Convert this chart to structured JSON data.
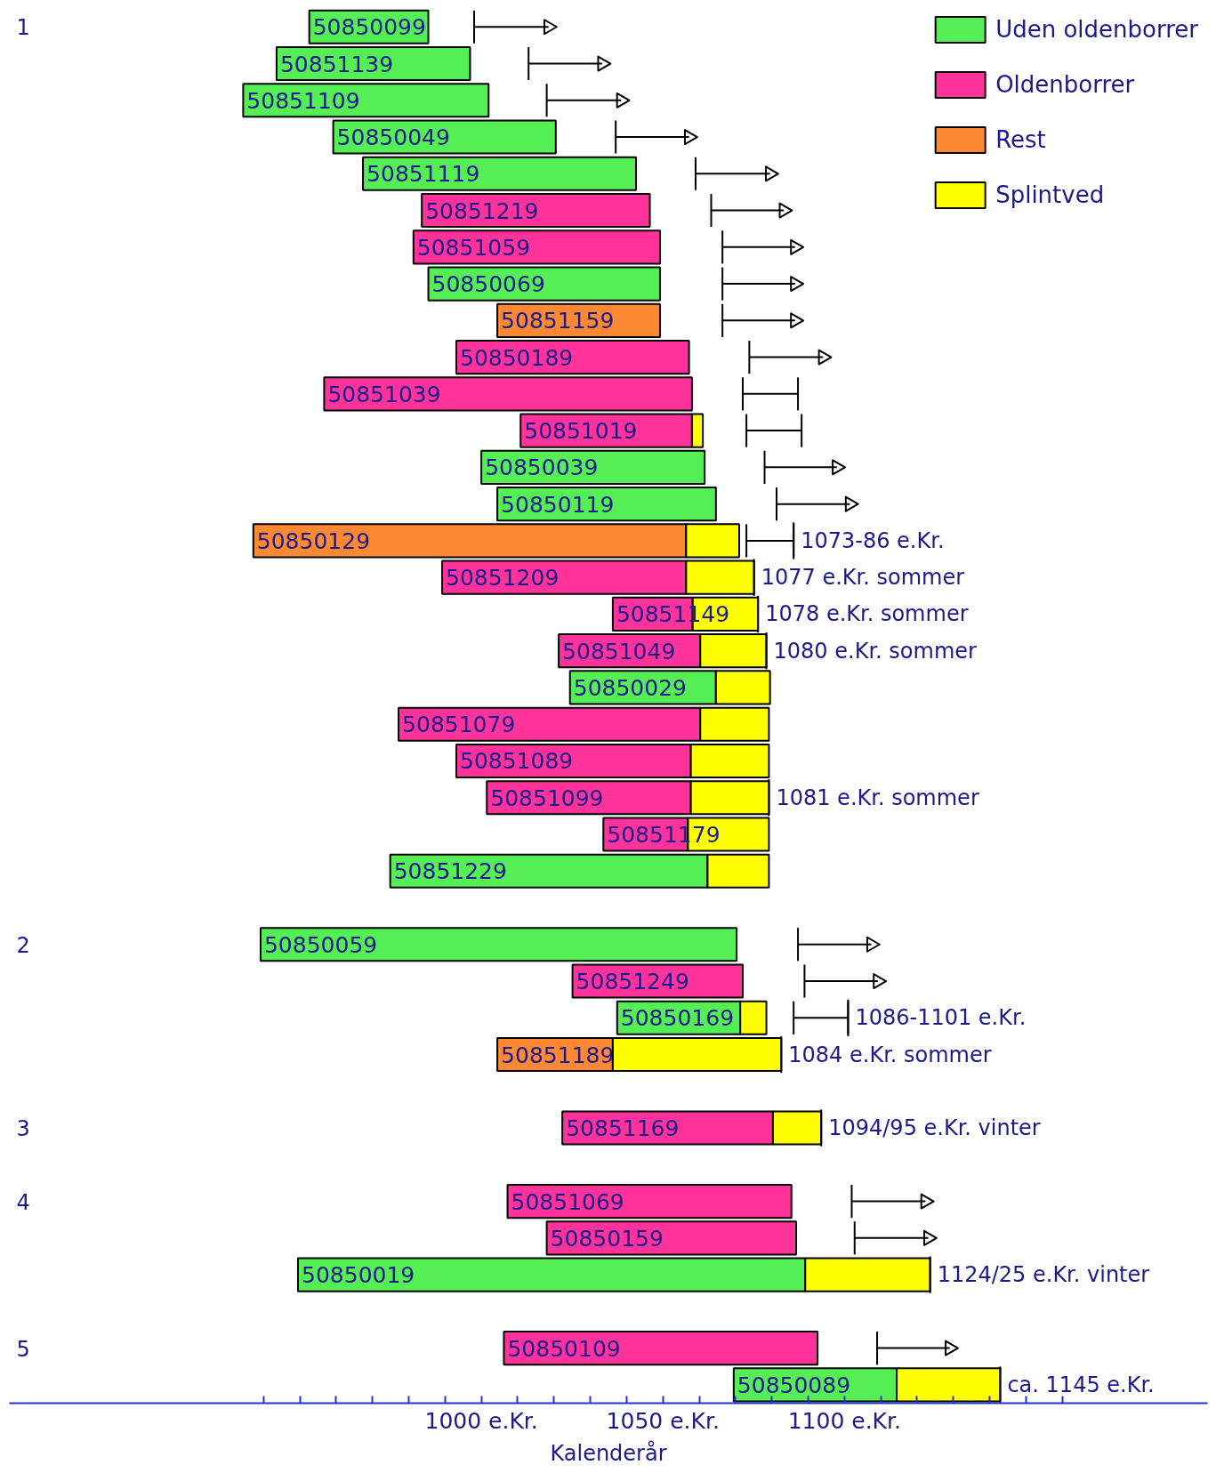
{
  "chart_data": {
    "type": "bar",
    "orientation": "horizontal",
    "xlabel": "Kalenderår",
    "legend": "top right",
    "grid": false,
    "tick_labels": "x",
    "xlim": [
      870,
      1200
    ],
    "xticks": [
      {
        "value": 940,
        "label": null
      },
      {
        "value": 950,
        "label": null
      },
      {
        "value": 960,
        "label": null
      },
      {
        "value": 970,
        "label": null
      },
      {
        "value": 980,
        "label": null
      },
      {
        "value": 990,
        "label": null
      },
      {
        "value": 1000,
        "label": "1000 e.Kr."
      },
      {
        "value": 1010,
        "label": null
      },
      {
        "value": 1020,
        "label": null
      },
      {
        "value": 1030,
        "label": null
      },
      {
        "value": 1040,
        "label": null
      },
      {
        "value": 1050,
        "label": "1050 e.Kr."
      },
      {
        "value": 1060,
        "label": null
      },
      {
        "value": 1070,
        "label": null
      },
      {
        "value": 1080,
        "label": null
      },
      {
        "value": 1090,
        "label": null
      },
      {
        "value": 1100,
        "label": "1100 e.Kr."
      },
      {
        "value": 1110,
        "label": null
      },
      {
        "value": 1120,
        "label": null
      },
      {
        "value": 1130,
        "label": null
      },
      {
        "value": 1140,
        "label": null
      },
      {
        "value": 1150,
        "label": null
      },
      {
        "value": 1160,
        "label": null
      }
    ],
    "categories": [
      "50850099",
      "50851139",
      "50851109",
      "50850049",
      "50851119",
      "50851219",
      "50851059",
      "50850069",
      "50851159",
      "50850189",
      "50851039",
      "50851019",
      "50850039",
      "50850119",
      "50850129",
      "50851209",
      "50851149",
      "50851049",
      "50850029",
      "50851079",
      "50851089",
      "50851099",
      "50851179",
      "50851229",
      null,
      "50850059",
      "50851249",
      "50850169",
      "50851189",
      null,
      "50851169",
      null,
      "50851069",
      "50850159",
      "50850019",
      null,
      "50850109",
      "50850089"
    ],
    "series": [
      {
        "name": "Uden oldenborrer",
        "color": "#55ee55",
        "errors": [
          [
            998,
            1018.5
          ],
          [
            1013,
            1033.3
          ],
          [
            1018,
            1038.5
          ],
          [
            1037,
            1057.2
          ],
          [
            1059,
            1079.5
          ],
          null,
          null,
          [
            1066.4,
            1086.4
          ],
          null,
          null,
          null,
          null,
          [
            1078,
            1097.9
          ],
          [
            1081.3,
            1101.5
          ],
          null,
          null,
          null,
          null,
          null,
          null,
          null,
          null,
          null,
          null,
          null,
          [
            1087.2,
            1107.4
          ],
          null,
          [
            1086,
            1101
          ],
          null,
          null,
          null,
          null,
          null,
          null,
          null,
          null,
          null,
          null
        ],
        "base": [
          952.6,
          943.6,
          934.4,
          959.2,
          967.4,
          null,
          null,
          985.4,
          null,
          null,
          null,
          null,
          1000,
          1004.4,
          null,
          null,
          null,
          null,
          1024.4,
          null,
          null,
          null,
          null,
          974.9,
          null,
          939.2,
          null,
          1037.4,
          null,
          null,
          null,
          null,
          null,
          null,
          949.5,
          null,
          null,
          1069.5
        ],
        "values": [
          32.8,
          53.3,
          67.6,
          61.3,
          75.2,
          null,
          null,
          63.8,
          null,
          null,
          null,
          null,
          61.5,
          60.2,
          null,
          null,
          null,
          null,
          40.2,
          null,
          null,
          null,
          null,
          87.4,
          null,
          131.1,
          null,
          33.9,
          null,
          null,
          null,
          null,
          null,
          null,
          139.7,
          null,
          null,
          44.9
        ]
      },
      {
        "name": "Oldenborrer",
        "color": "#ff3399",
        "errors": [
          null,
          null,
          null,
          null,
          null,
          [
            1063.3,
            1083.3
          ],
          [
            1066.4,
            1086.4
          ],
          null,
          null,
          [
            1073.8,
            1094.1
          ],
          [
            1072,
            1087.2
          ],
          [
            1073,
            1088.2
          ],
          null,
          null,
          null,
          null,
          null,
          null,
          null,
          null,
          null,
          null,
          null,
          null,
          null,
          null,
          [
            1089,
            1109.2
          ],
          null,
          null,
          null,
          null,
          null,
          [
            1102,
            1122.3
          ],
          [
            1102.8,
            1123.1
          ],
          null,
          null,
          [
            1109,
            1129
          ],
          null
        ],
        "base": [
          null,
          null,
          null,
          null,
          null,
          983.6,
          981.3,
          null,
          null,
          993.1,
          956.7,
          1010.8,
          null,
          null,
          null,
          989.2,
          1036.2,
          1021.3,
          null,
          977.2,
          993.1,
          1001.5,
          1033.6,
          null,
          null,
          null,
          1025.1,
          null,
          null,
          null,
          1022.3,
          null,
          1007.2,
          1018,
          null,
          null,
          1006.2,
          null
        ],
        "values": [
          null,
          null,
          null,
          null,
          null,
          62.8,
          67.9,
          null,
          null,
          64.1,
          101.3,
          47.2,
          null,
          null,
          null,
          67.2,
          22,
          39,
          null,
          83.1,
          64.6,
          56.2,
          23.3,
          null,
          null,
          null,
          46.9,
          null,
          null,
          null,
          58,
          null,
          78.2,
          68.7,
          null,
          null,
          86.4,
          null
        ]
      },
      {
        "name": "Rest",
        "color": "#ff8833",
        "errors": [
          null,
          null,
          null,
          null,
          null,
          null,
          null,
          null,
          [
            1066.4,
            1086.4
          ],
          null,
          null,
          null,
          null,
          null,
          [
            1073,
            1086
          ],
          null,
          null,
          null,
          null,
          null,
          null,
          null,
          null,
          null,
          null,
          null,
          null,
          null,
          null,
          null,
          null,
          null,
          null,
          null,
          null,
          null,
          null,
          null
        ],
        "base": [
          null,
          null,
          null,
          null,
          null,
          null,
          null,
          null,
          1004.4,
          null,
          null,
          null,
          null,
          null,
          937.2,
          null,
          null,
          null,
          null,
          null,
          null,
          null,
          null,
          null,
          null,
          null,
          null,
          null,
          1004.4,
          null,
          null,
          null,
          null,
          null,
          null,
          null,
          null,
          null
        ],
        "values": [
          null,
          null,
          null,
          null,
          null,
          null,
          null,
          null,
          44.8,
          null,
          null,
          null,
          null,
          null,
          119.2,
          null,
          null,
          null,
          null,
          null,
          null,
          null,
          null,
          null,
          null,
          null,
          null,
          null,
          31.8,
          null,
          null,
          null,
          null,
          null,
          null,
          null,
          null,
          null
        ]
      },
      {
        "type": "scatter",
        "marker": "triangle",
        "color": "#000000",
        "values": [
          1018.5,
          1033.3,
          1038.5,
          1057.2,
          1079.5,
          1083.3,
          1086.4,
          1086.4,
          1086.4,
          1094.1,
          null,
          null,
          1097.9,
          1101.5,
          null,
          null,
          null,
          null,
          null,
          null,
          null,
          null,
          null,
          null,
          null,
          1107.4,
          1109.2,
          null,
          null,
          null,
          null,
          null,
          1122.3,
          1123.1,
          null,
          null,
          1129,
          null
        ]
      },
      {
        "name": "Splintved",
        "color": "#ffff00",
        "base": [
          null,
          null,
          null,
          null,
          null,
          null,
          null,
          null,
          null,
          null,
          null,
          1058,
          null,
          null,
          1056.4,
          1056.4,
          1058.2,
          1060.3,
          1064.6,
          1060.3,
          1057.7,
          1057.7,
          1056.9,
          1062.3,
          null,
          null,
          null,
          1071.3,
          1036.2,
          null,
          1080.3,
          null,
          null,
          null,
          1089.2,
          null,
          null,
          1114.4
        ],
        "values": [
          null,
          null,
          null,
          null,
          null,
          null,
          null,
          null,
          null,
          null,
          null,
          3,
          null,
          null,
          14.6,
          18.7,
          18,
          18.2,
          14.9,
          18.9,
          21.5,
          21.5,
          22.3,
          16.9,
          null,
          null,
          null,
          7.2,
          46.4,
          null,
          13.3,
          null,
          null,
          null,
          34.4,
          null,
          null,
          28.5
        ]
      }
    ],
    "annotations": [
      "1",
      "2",
      "3",
      "4",
      "5",
      {
        "text": "1073-86 e.Kr.",
        "x": 1086,
        "y": "50850129"
      },
      {
        "text": "1077 e.Kr. sommer",
        "x": 1075.1,
        "y": "50851209"
      },
      {
        "text": "1078 e.Kr. sommer",
        "x": 1076.2,
        "y": "50851149"
      },
      {
        "text": "1080 e.Kr. sommer",
        "x": 1078.5,
        "y": "50851049"
      },
      {
        "text": "1081 e.Kr. sommer",
        "x": 1079.2,
        "y": "50851099"
      },
      {
        "text": "1086-1101 e.Kr.",
        "x": 1101,
        "y": "50850169"
      },
      {
        "text": "1084 e.Kr. sommer",
        "x": 1082.6,
        "y": "50851189"
      },
      {
        "text": "1094/95 e.Kr. vinter",
        "x": 1093.6,
        "y": "50851169"
      },
      {
        "text": "1124/25 e.Kr. vinter",
        "x": 1123.6,
        "y": "50850019"
      },
      {
        "text": "ca. 1145 e.Kr.",
        "x": 1142.9,
        "y": "50850089"
      }
    ]
  }
}
